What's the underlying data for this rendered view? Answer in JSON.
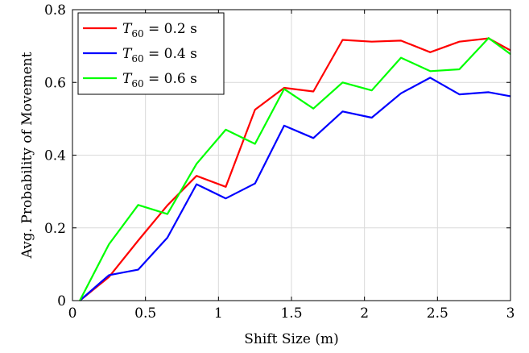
{
  "chart_data": {
    "type": "line",
    "title": "",
    "xlabel": "Shift Size (m)",
    "ylabel": "Avg. Probability of Movement",
    "xlim": [
      0,
      3
    ],
    "ylim": [
      0,
      0.8
    ],
    "xticks": [
      0,
      0.5,
      1,
      1.5,
      2,
      2.5,
      3
    ],
    "xtick_labels": [
      "0",
      "0.5",
      "1",
      "1.5",
      "2",
      "2.5",
      "3"
    ],
    "yticks": [
      0,
      0.2,
      0.4,
      0.6,
      0.8
    ],
    "ytick_labels": [
      "0",
      "0.2",
      "0.4",
      "0.6",
      "0.8"
    ],
    "grid": true,
    "legend_position": "top-left",
    "x": [
      0.05,
      0.25,
      0.45,
      0.65,
      0.85,
      1.05,
      1.25,
      1.45,
      1.65,
      1.85,
      2.05,
      2.25,
      2.45,
      2.65,
      2.85,
      3.0
    ],
    "series": [
      {
        "name": "T60 = 0.2 s",
        "legend_base": "T",
        "legend_sub": "60",
        "legend_rest": " = 0.2 s",
        "color": "#ff0000",
        "values": [
          0.0,
          0.065,
          0.165,
          0.262,
          0.343,
          0.313,
          0.525,
          0.585,
          0.575,
          0.717,
          0.712,
          0.715,
          0.683,
          0.712,
          0.721,
          0.688
        ]
      },
      {
        "name": "T60 = 0.4 s",
        "legend_base": "T",
        "legend_sub": "60",
        "legend_rest": " = 0.4 s",
        "color": "#0000ff",
        "values": [
          0.0,
          0.07,
          0.085,
          0.173,
          0.32,
          0.281,
          0.322,
          0.481,
          0.447,
          0.52,
          0.503,
          0.57,
          0.613,
          0.567,
          0.573,
          0.562
        ]
      },
      {
        "name": "T60 = 0.6 s",
        "legend_base": "T",
        "legend_sub": "60",
        "legend_rest": " = 0.6 s",
        "color": "#00ff00",
        "values": [
          0.0,
          0.155,
          0.263,
          0.238,
          0.376,
          0.47,
          0.431,
          0.582,
          0.528,
          0.6,
          0.578,
          0.668,
          0.631,
          0.636,
          0.722,
          0.678
        ]
      }
    ]
  }
}
